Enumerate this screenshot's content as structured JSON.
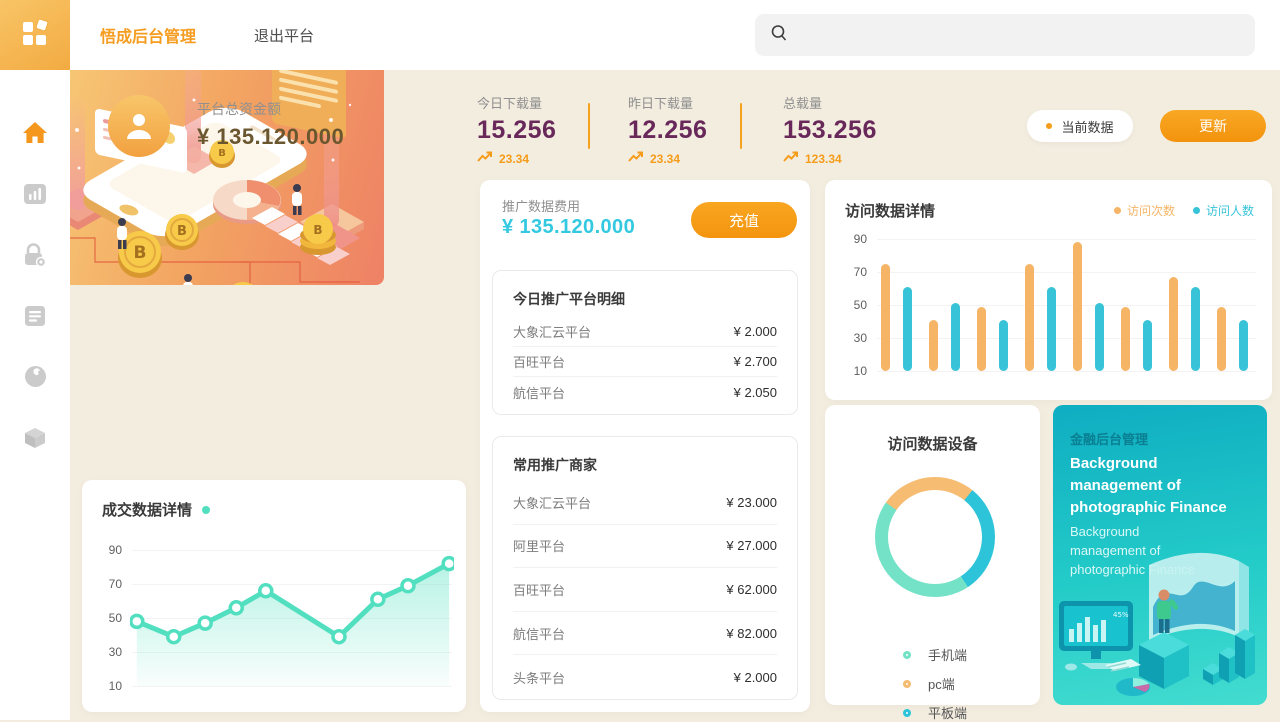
{
  "colors": {
    "accent_orange": "#f59c1a",
    "stat_purple": "#68295a",
    "money_brown": "#6a572f",
    "money_cyan": "#33c9e0",
    "bar_orange": "#f6b566",
    "bar_teal": "#38c3d8",
    "line_mint": "#52dfc0",
    "banner_teal": "#23cbc8",
    "page_bg": "#f3ede0"
  },
  "topbar": {
    "brand": "悟成后台管理",
    "exit": "退出平台",
    "search_placeholder": ""
  },
  "sidebar": {
    "items": [
      {
        "name": "home",
        "active": true
      },
      {
        "name": "bar-chart",
        "active": false
      },
      {
        "name": "lock-settings",
        "active": false
      },
      {
        "name": "document-list",
        "active": false
      },
      {
        "name": "tools",
        "active": false
      },
      {
        "name": "box",
        "active": false
      }
    ]
  },
  "header": {
    "fund_label": "平台总资金额",
    "fund_value": "¥ 135.120.000",
    "stats": [
      {
        "label": "今日下载量",
        "value": "15.256",
        "trend": "23.34"
      },
      {
        "label": "昨日下载量",
        "value": "12.256",
        "trend": "23.34"
      },
      {
        "label": "总载量",
        "value": "153.256",
        "trend": "123.34"
      }
    ],
    "current_data_label": "当前数据",
    "update_label": "更新"
  },
  "promo": {
    "fee_label": "推广数据费用",
    "fee_value": "¥ 135.120.000",
    "recharge_label": "充值",
    "today_detail": {
      "title": "今日推广平台明细",
      "rows": [
        {
          "name": "大象汇云平台",
          "value": "¥ 2.000"
        },
        {
          "name": "百旺平台",
          "value": "¥ 2.700"
        },
        {
          "name": "航信平台",
          "value": "¥ 2.050"
        }
      ]
    },
    "merchants": {
      "title": "常用推广商家",
      "rows": [
        {
          "name": "大象汇云平台",
          "value": "¥ 23.000"
        },
        {
          "name": "阿里平台",
          "value": "¥ 27.000"
        },
        {
          "name": "百旺平台",
          "value": "¥ 62.000"
        },
        {
          "name": "航信平台",
          "value": "¥ 82.000"
        },
        {
          "name": "头条平台",
          "value": "¥ 2.000"
        }
      ]
    }
  },
  "chart_data": [
    {
      "type": "bar",
      "title": "访问数据详情",
      "legend": [
        {
          "label": "访问次数",
          "color": "#f6b566"
        },
        {
          "label": "访问人数",
          "color": "#38c3d8"
        }
      ],
      "yticks": [
        90,
        70,
        50,
        30,
        10
      ],
      "ylim": [
        10,
        90
      ],
      "grid": true,
      "legend_position": "top-right",
      "series": [
        {
          "name": "访问次数",
          "color": "#f6b566",
          "values": [
            75,
            41,
            49,
            75,
            88,
            49,
            67,
            49
          ]
        },
        {
          "name": "访问人数",
          "color": "#38c3d8",
          "values": [
            61,
            51,
            41,
            61,
            51,
            41,
            61,
            41
          ]
        }
      ]
    },
    {
      "type": "line",
      "title": "成交数据详情",
      "color": "#52dfc0",
      "yticks": [
        90,
        70,
        50,
        30,
        10
      ],
      "ylim": [
        10,
        90
      ],
      "grid": true,
      "x_pct": [
        2.1,
        13.5,
        23.2,
        32.8,
        41.9,
        64.5,
        76.5,
        85.8,
        98.5
      ],
      "values": [
        48,
        39,
        47,
        56,
        66,
        39,
        61,
        69,
        82
      ]
    },
    {
      "type": "donut",
      "title": "访问数据设备",
      "slices": [
        {
          "label": "手机端",
          "pct": 44,
          "color": "#73e2c6"
        },
        {
          "label": "pc端",
          "pct": 26,
          "color": "#f6bc72"
        },
        {
          "label": "平板端",
          "pct": 30,
          "color": "#2dc4d9"
        }
      ]
    }
  ],
  "banner": {
    "tag": "金融后台管理",
    "title": "Background management of photographic Finance",
    "subtitle": "Background management of photographic Finance"
  }
}
